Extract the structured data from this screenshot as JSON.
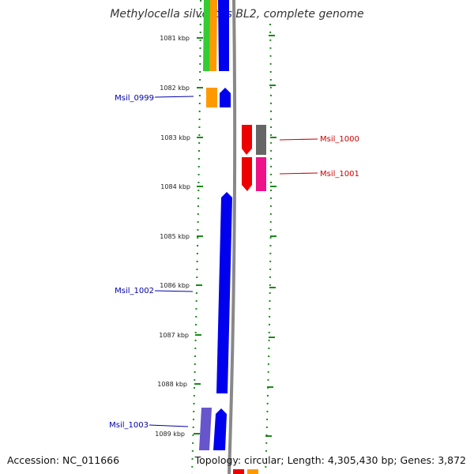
{
  "title": "Methylocella silvestris BL2, complete genome",
  "footer": {
    "accession": "Accession: NC_011666",
    "topology": "Topology: circular; Length: 4,305,430 bp; Genes: 3,872"
  },
  "ticks": [
    "1081 kbp",
    "1082 kbp",
    "1083 kbp",
    "1084 kbp",
    "1085 kbp",
    "1086 kbp",
    "1087 kbp",
    "1088 kbp",
    "1089 kbp"
  ],
  "labels": [
    {
      "id": "msil0999",
      "text": "Msil_0999",
      "color": "#0000aa"
    },
    {
      "id": "msil1000",
      "text": "Msil_1000",
      "color": "#cc0000"
    },
    {
      "id": "msil1001",
      "text": "Msil_1001",
      "color": "#cc0000"
    },
    {
      "id": "msil1002",
      "text": "Msil_1002",
      "color": "#0000aa"
    },
    {
      "id": "msil1003",
      "text": "Msil_1003",
      "color": "#0000aa"
    }
  ],
  "colors": {
    "backbone": "#888888",
    "tick": "#1a8a1a",
    "blue": "#0000ee",
    "red": "#ee0000",
    "orange": "#ff9900",
    "green": "#33cc33",
    "gray": "#666666",
    "magenta": "#ee1188",
    "violet": "#6655cc"
  }
}
